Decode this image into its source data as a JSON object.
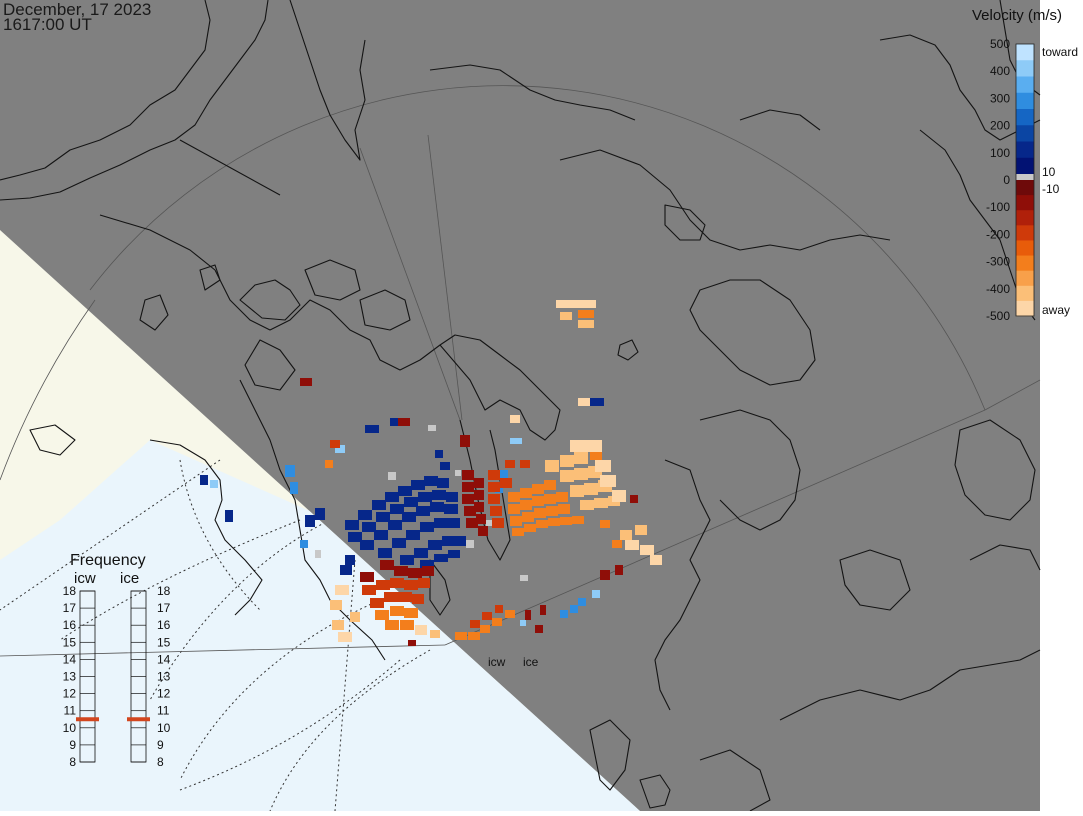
{
  "header": {
    "date": "December, 17 2023",
    "time": "1617:00 UT"
  },
  "colorbar": {
    "title": "Velocity (m/s)",
    "ticks": [
      "500",
      "400",
      "300",
      "200",
      "100",
      "0",
      "-100",
      "-200",
      "-300",
      "-400",
      "-500"
    ],
    "label_toward": "toward",
    "label_away": "away",
    "label_plus10": "10",
    "label_minus10": "-10",
    "toward_colors": [
      "#bfe3ff",
      "#8ecbf7",
      "#5aaef0",
      "#2f8de0",
      "#1566c4",
      "#0b45a3",
      "#06278a",
      "#021273"
    ],
    "away_colors": [
      "#6e0a0a",
      "#8f0e08",
      "#b0200a",
      "#cf3a0a",
      "#e85c0a",
      "#f37e1c",
      "#f8a04a",
      "#fbbf78",
      "#fdd6a8"
    ],
    "gray_color": "#c8c8c8"
  },
  "frequency": {
    "title": "Frequency",
    "radars": [
      {
        "name": "icw",
        "value_mhz": 10.5
      },
      {
        "name": "ice",
        "value_mhz": 10.5
      }
    ],
    "ticks": [
      "18",
      "17",
      "16",
      "15",
      "14",
      "13",
      "12",
      "11",
      "10",
      "9",
      "8"
    ],
    "marker_color": "#d2461e"
  },
  "radars": {
    "labels": [
      "icw",
      "ice"
    ]
  },
  "colors": {
    "night": "#808080",
    "day": "#f7f7e9",
    "fov": "#eaf5fc",
    "coast": "#141414"
  }
}
